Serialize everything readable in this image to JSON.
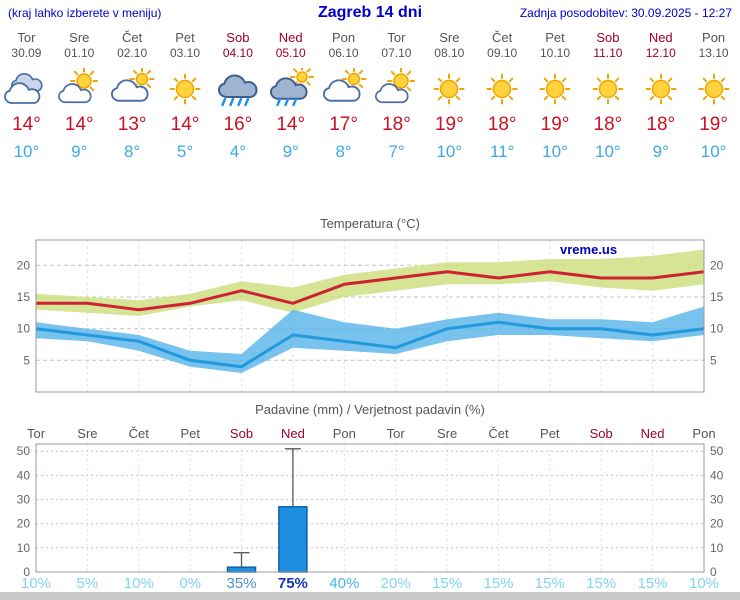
{
  "header": {
    "left_note": "(kraj lahko izberete v meniju)",
    "title": "Zagreb 14 dni",
    "last_update": "Zadnja posodobitev: 30.09.2025 - 12:27"
  },
  "colors": {
    "link_blue": "#0000cc",
    "weekend_red": "#a00028",
    "weekday_gray": "#555555",
    "tmax_red": "#cc1122",
    "tmin_blue": "#3fa8e0",
    "bar_fill": "#1e8fe0",
    "bar_stroke": "#0b62a8",
    "prob_light": "#82d4ec",
    "prob_medium": "#4e8fc4",
    "prob_cyan": "#46b4e4",
    "prob_dark": "#1538b0"
  },
  "days": [
    {
      "name": "Tor",
      "date": "30.09",
      "weekend": false,
      "icon": "cloudy",
      "tmax": "14°",
      "tmin": "10°",
      "prob": "10%",
      "prob_color": "#82d4ec"
    },
    {
      "name": "Sre",
      "date": "01.10",
      "weekend": false,
      "icon": "partly-cloudy",
      "tmax": "14°",
      "tmin": "9°",
      "prob": "5%",
      "prob_color": "#82d4ec"
    },
    {
      "name": "Čet",
      "date": "02.10",
      "weekend": false,
      "icon": "mostly-cloudy",
      "tmax": "13°",
      "tmin": "8°",
      "prob": "10%",
      "prob_color": "#82d4ec"
    },
    {
      "name": "Pet",
      "date": "03.10",
      "weekend": false,
      "icon": "sunny",
      "tmax": "14°",
      "tmin": "5°",
      "prob": "0%",
      "prob_color": "#82d4ec"
    },
    {
      "name": "Sob",
      "date": "04.10",
      "weekend": true,
      "icon": "rain",
      "tmax": "16°",
      "tmin": "4°",
      "prob": "35%",
      "prob_color": "#4e8fc4"
    },
    {
      "name": "Ned",
      "date": "05.10",
      "weekend": true,
      "icon": "rain-sun",
      "tmax": "14°",
      "tmin": "9°",
      "prob": "75%",
      "prob_color": "#1538b0"
    },
    {
      "name": "Pon",
      "date": "06.10",
      "weekend": false,
      "icon": "cloudy-sun",
      "tmax": "17°",
      "tmin": "8°",
      "prob": "40%",
      "prob_color": "#46b4e4"
    },
    {
      "name": "Tor",
      "date": "07.10",
      "weekend": false,
      "icon": "partly-cloudy",
      "tmax": "18°",
      "tmin": "7°",
      "prob": "20%",
      "prob_color": "#82d4ec"
    },
    {
      "name": "Sre",
      "date": "08.10",
      "weekend": false,
      "icon": "sunny",
      "tmax": "19°",
      "tmin": "10°",
      "prob": "15%",
      "prob_color": "#82d4ec"
    },
    {
      "name": "Čet",
      "date": "09.10",
      "weekend": false,
      "icon": "sunny",
      "tmax": "18°",
      "tmin": "11°",
      "prob": "15%",
      "prob_color": "#82d4ec"
    },
    {
      "name": "Pet",
      "date": "10.10",
      "weekend": false,
      "icon": "sunny",
      "tmax": "19°",
      "tmin": "10°",
      "prob": "15%",
      "prob_color": "#82d4ec"
    },
    {
      "name": "Sob",
      "date": "11.10",
      "weekend": true,
      "icon": "sunny",
      "tmax": "18°",
      "tmin": "10°",
      "prob": "15%",
      "prob_color": "#82d4ec"
    },
    {
      "name": "Ned",
      "date": "12.10",
      "weekend": true,
      "icon": "sunny",
      "tmax": "18°",
      "tmin": "9°",
      "prob": "15%",
      "prob_color": "#82d4ec"
    },
    {
      "name": "Pon",
      "date": "13.10",
      "weekend": false,
      "icon": "sunny",
      "tmax": "19°",
      "tmin": "10°",
      "prob": "10%",
      "prob_color": "#82d4ec"
    }
  ],
  "chart_data": [
    {
      "type": "line",
      "title": "Temperatura (°C)",
      "watermark": "vreme.us",
      "categories": [
        "Tor",
        "Sre",
        "Čet",
        "Pet",
        "Sob",
        "Ned",
        "Pon",
        "Tor",
        "Sre",
        "Čet",
        "Pet",
        "Sob",
        "Ned",
        "Pon"
      ],
      "ylim": [
        0,
        24
      ],
      "yticks": [
        5,
        10,
        15,
        20
      ],
      "grid": true,
      "series": [
        {
          "name": "tmax",
          "color": "#cc2233",
          "values": [
            14,
            14,
            13,
            14,
            16,
            14,
            17,
            18,
            19,
            18,
            19,
            18,
            18,
            19
          ]
        },
        {
          "name": "tmin",
          "color": "#2299dd",
          "values": [
            10,
            9,
            8,
            5,
            4,
            9,
            8,
            7,
            10,
            11,
            10,
            10,
            9,
            10
          ]
        }
      ],
      "bands": [
        {
          "name": "tmax-range",
          "color": "rgba(206,224,130,0.85)",
          "upper": [
            15.5,
            15,
            14.5,
            15.5,
            17.5,
            16.5,
            18.5,
            19.5,
            20.5,
            20.5,
            21,
            21,
            21.5,
            22.5
          ],
          "lower": [
            13,
            12.5,
            12,
            13.5,
            14.5,
            12.5,
            15,
            16,
            17,
            17,
            17.5,
            16.5,
            16,
            17
          ]
        },
        {
          "name": "tmin-range",
          "color": "rgba(85,180,232,0.8)",
          "upper": [
            11,
            10,
            9,
            6.5,
            6,
            13,
            11,
            10,
            11.5,
            12.5,
            11.5,
            11.5,
            11,
            13.5
          ],
          "lower": [
            8.5,
            8,
            6.5,
            4,
            3,
            7,
            6.5,
            6,
            8,
            9,
            9,
            8.5,
            8,
            9
          ]
        }
      ]
    },
    {
      "type": "bar",
      "title": "Padavine (mm) / Verjetnost padavin (%)",
      "categories": [
        "Tor",
        "Sre",
        "Čet",
        "Pet",
        "Sob",
        "Ned",
        "Pon",
        "Tor",
        "Sre",
        "Čet",
        "Pet",
        "Sob",
        "Ned",
        "Pon"
      ],
      "ylim": [
        0,
        53
      ],
      "yticks": [
        0,
        10,
        20,
        30,
        40,
        50
      ],
      "values": [
        0,
        0,
        0,
        0,
        2,
        27,
        0,
        0,
        0,
        0,
        0,
        0,
        0,
        0
      ],
      "whisker_high": [
        0,
        0,
        0,
        0,
        8,
        51,
        0,
        0,
        0,
        0,
        0,
        0,
        0,
        0
      ],
      "probabilities": [
        "10%",
        "5%",
        "10%",
        "0%",
        "35%",
        "75%",
        "40%",
        "20%",
        "15%",
        "15%",
        "15%",
        "15%",
        "15%",
        "10%"
      ]
    }
  ]
}
